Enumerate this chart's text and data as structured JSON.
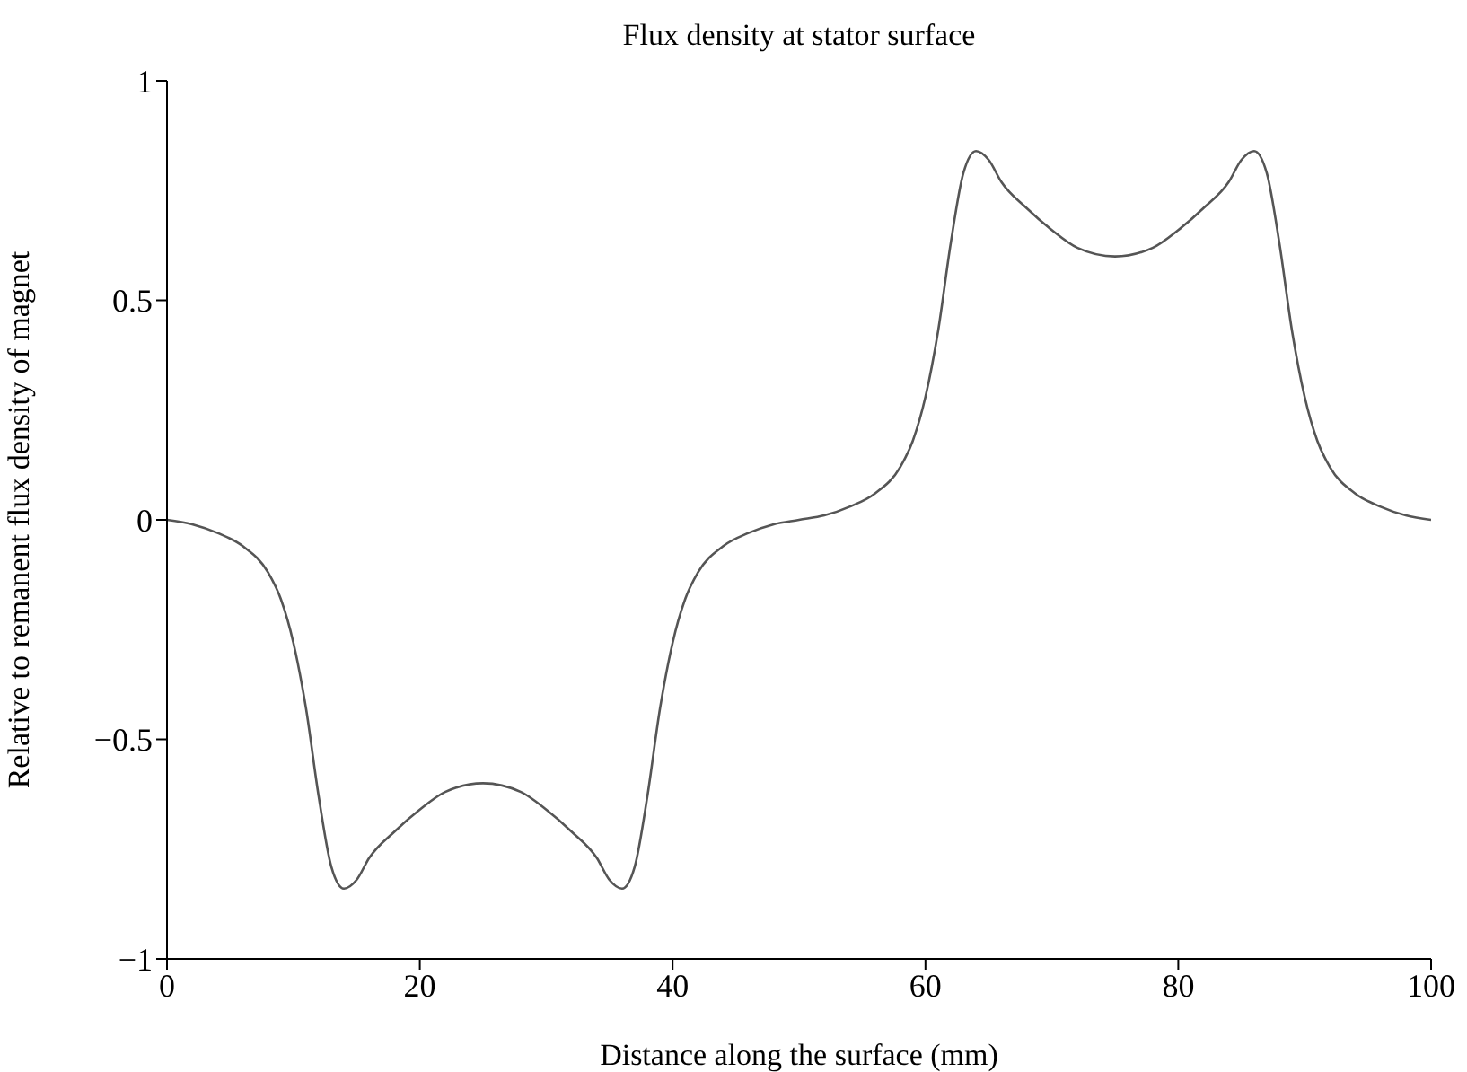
{
  "chart_data": {
    "type": "line",
    "title": "Flux density at stator surface",
    "xlabel": "Distance along the surface (mm)",
    "ylabel": "Relative to remanent flux density of magnet",
    "x": [
      0,
      2,
      4,
      6,
      8,
      9,
      10,
      11,
      12,
      13,
      14,
      15,
      16,
      18,
      20,
      22,
      25,
      28,
      30,
      32,
      34,
      35,
      36,
      37,
      38,
      39,
      40,
      41,
      42,
      44,
      46,
      48,
      50,
      52,
      54,
      56,
      58,
      59,
      60,
      61,
      62,
      63,
      64,
      65,
      66,
      68,
      70,
      72,
      75,
      78,
      80,
      82,
      84,
      85,
      86,
      87,
      88,
      89,
      90,
      91,
      92,
      94,
      96,
      98,
      100
    ],
    "series": [
      {
        "color": "#555555",
        "values": [
          0,
          -0.01,
          -0.03,
          -0.06,
          -0.12,
          -0.18,
          -0.28,
          -0.43,
          -0.63,
          -0.79,
          -0.84,
          -0.82,
          -0.77,
          -0.71,
          -0.66,
          -0.62,
          -0.6,
          -0.62,
          -0.66,
          -0.71,
          -0.77,
          -0.82,
          -0.84,
          -0.79,
          -0.63,
          -0.43,
          -0.28,
          -0.18,
          -0.12,
          -0.06,
          -0.03,
          -0.01,
          0,
          0.01,
          0.03,
          0.06,
          0.12,
          0.18,
          0.28,
          0.43,
          0.63,
          0.79,
          0.84,
          0.82,
          0.77,
          0.71,
          0.66,
          0.62,
          0.6,
          0.62,
          0.66,
          0.71,
          0.77,
          0.82,
          0.84,
          0.79,
          0.63,
          0.43,
          0.28,
          0.18,
          0.12,
          0.06,
          0.03,
          0.01,
          0
        ]
      }
    ],
    "xlim": [
      0,
      100
    ],
    "xticks": [
      0,
      20,
      40,
      60,
      80,
      100
    ],
    "ylim": [
      -1,
      1
    ],
    "yticks": [
      {
        "value": -1,
        "label": "−1"
      },
      {
        "value": -0.5,
        "label": "−0.5"
      },
      0,
      0.5,
      1
    ],
    "grid": false,
    "legend": false,
    "marker": "none",
    "line_style": "solid"
  }
}
